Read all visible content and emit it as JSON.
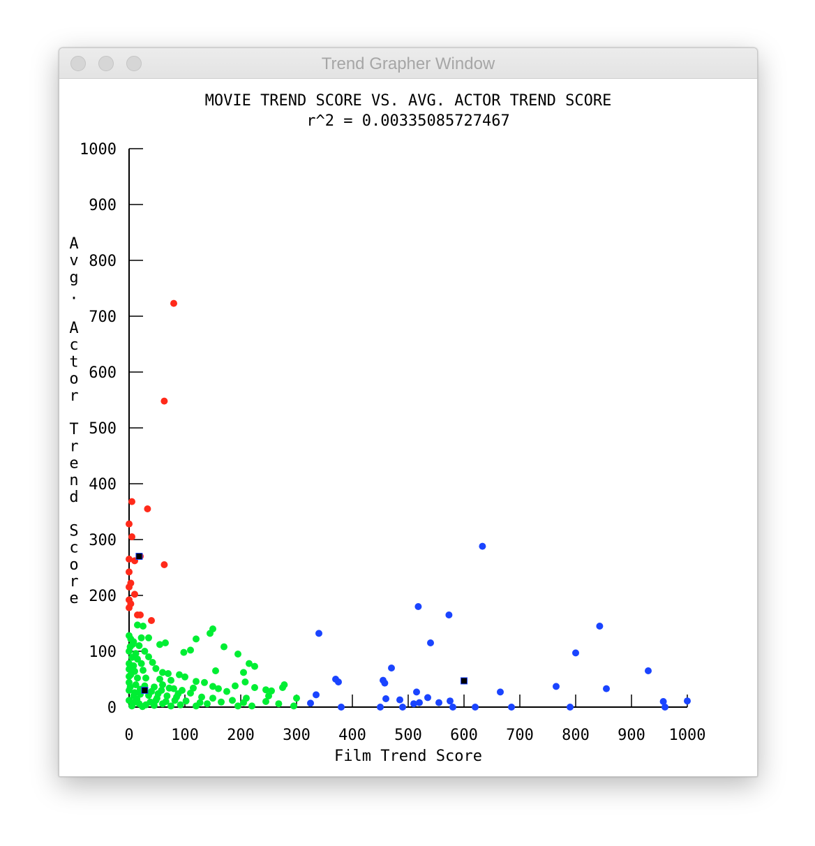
{
  "window": {
    "title": "Trend Grapher Window",
    "buttons": [
      "close",
      "minimize",
      "zoom"
    ]
  },
  "chart_data": {
    "type": "scatter",
    "title": "MOVIE TREND SCORE VS. AVG. ACTOR TREND SCORE",
    "subtitle": "r^2 = 0.00335085727467",
    "xlabel": "Film Trend Score",
    "ylabel": "Avg. Actor Trend Score",
    "xlim": [
      0,
      1000
    ],
    "ylim": [
      0,
      1000
    ],
    "x_ticks": [
      "0",
      "100",
      "200",
      "300",
      "400",
      "500",
      "600",
      "700",
      "800",
      "900",
      "1000"
    ],
    "y_ticks": [
      "0",
      "100",
      "200",
      "300",
      "400",
      "500",
      "600",
      "700",
      "800",
      "900",
      "1000"
    ],
    "grid": false,
    "legend": "none",
    "colors": {
      "red_series": "#ff2a1a",
      "green_series": "#00ee33",
      "blue_series": "#1a44ff",
      "centroid": "#000000"
    },
    "series": [
      {
        "color": "#ff2a1a",
        "points": [
          [
            80,
            723
          ],
          [
            63,
            548
          ],
          [
            5,
            368
          ],
          [
            33,
            355
          ],
          [
            0,
            328
          ],
          [
            5,
            305
          ],
          [
            20,
            270
          ],
          [
            0,
            265
          ],
          [
            10,
            262
          ],
          [
            63,
            255
          ],
          [
            0,
            242
          ],
          [
            3,
            222
          ],
          [
            0,
            215
          ],
          [
            10,
            202
          ],
          [
            0,
            192
          ],
          [
            3,
            185
          ],
          [
            0,
            178
          ],
          [
            15,
            165
          ],
          [
            20,
            165
          ],
          [
            40,
            155
          ]
        ]
      },
      {
        "color": "#00ee33",
        "points": [
          [
            150,
            140
          ],
          [
            145,
            132
          ],
          [
            15,
            147
          ],
          [
            25,
            145
          ],
          [
            120,
            122
          ],
          [
            35,
            124
          ],
          [
            65,
            115
          ],
          [
            55,
            112
          ],
          [
            170,
            108
          ],
          [
            195,
            95
          ],
          [
            215,
            78
          ],
          [
            225,
            73
          ],
          [
            205,
            62
          ],
          [
            155,
            65
          ],
          [
            98,
            98
          ],
          [
            110,
            102
          ],
          [
            0,
            128
          ],
          [
            3,
            122
          ],
          [
            8,
            117
          ],
          [
            18,
            110
          ],
          [
            0,
            100
          ],
          [
            12,
            96
          ],
          [
            28,
            100
          ],
          [
            5,
            89
          ],
          [
            15,
            86
          ],
          [
            35,
            90
          ],
          [
            0,
            78
          ],
          [
            8,
            74
          ],
          [
            22,
            78
          ],
          [
            42,
            80
          ],
          [
            0,
            68
          ],
          [
            10,
            64
          ],
          [
            25,
            66
          ],
          [
            48,
            69
          ],
          [
            60,
            62
          ],
          [
            70,
            60
          ],
          [
            90,
            58
          ],
          [
            0,
            55
          ],
          [
            15,
            52
          ],
          [
            30,
            52
          ],
          [
            55,
            50
          ],
          [
            75,
            48
          ],
          [
            100,
            54
          ],
          [
            120,
            46
          ],
          [
            135,
            44
          ],
          [
            208,
            45
          ],
          [
            225,
            35
          ],
          [
            245,
            31
          ],
          [
            255,
            29
          ],
          [
            275,
            35
          ],
          [
            278,
            40
          ],
          [
            300,
            16
          ],
          [
            0,
            44
          ],
          [
            12,
            40
          ],
          [
            28,
            38
          ],
          [
            45,
            36
          ],
          [
            60,
            40
          ],
          [
            80,
            33
          ],
          [
            95,
            30
          ],
          [
            115,
            34
          ],
          [
            150,
            37
          ],
          [
            160,
            33
          ],
          [
            175,
            28
          ],
          [
            190,
            38
          ],
          [
            210,
            16
          ],
          [
            250,
            20
          ],
          [
            268,
            6
          ],
          [
            0,
            30
          ],
          [
            10,
            26
          ],
          [
            20,
            23
          ],
          [
            35,
            21
          ],
          [
            52,
            24
          ],
          [
            68,
            20
          ],
          [
            85,
            18
          ],
          [
            110,
            25
          ],
          [
            130,
            18
          ],
          [
            150,
            16
          ],
          [
            185,
            12
          ],
          [
            205,
            8
          ],
          [
            245,
            10
          ],
          [
            295,
            2
          ],
          [
            0,
            12
          ],
          [
            8,
            8
          ],
          [
            18,
            6
          ],
          [
            30,
            4
          ],
          [
            45,
            3
          ],
          [
            60,
            6
          ],
          [
            75,
            2
          ],
          [
            92,
            4
          ],
          [
            120,
            2
          ],
          [
            140,
            6
          ],
          [
            165,
            9
          ],
          [
            195,
            2
          ],
          [
            220,
            2
          ],
          [
            5,
            2
          ],
          [
            24,
            1
          ],
          [
            38,
            9
          ],
          [
            48,
            12
          ],
          [
            66,
            10
          ],
          [
            82,
            12
          ],
          [
            102,
            11
          ],
          [
            127,
            8
          ],
          [
            3,
            58
          ],
          [
            2,
            36
          ],
          [
            8,
            20
          ],
          [
            14,
            14
          ],
          [
            20,
            32
          ],
          [
            40,
            28
          ],
          [
            50,
            16
          ],
          [
            58,
            30
          ],
          [
            72,
            34
          ],
          [
            88,
            24
          ],
          [
            2,
            108
          ],
          [
            6,
            112
          ],
          [
            22,
            124
          ]
        ]
      },
      {
        "color": "#1a44ff",
        "points": [
          [
            633,
            288
          ],
          [
            518,
            180
          ],
          [
            573,
            165
          ],
          [
            843,
            145
          ],
          [
            340,
            132
          ],
          [
            540,
            115
          ],
          [
            800,
            97
          ],
          [
            930,
            65
          ],
          [
            470,
            70
          ],
          [
            370,
            50
          ],
          [
            375,
            45
          ],
          [
            455,
            48
          ],
          [
            458,
            43
          ],
          [
            600,
            47
          ],
          [
            765,
            37
          ],
          [
            855,
            33
          ],
          [
            665,
            27
          ],
          [
            515,
            27
          ],
          [
            335,
            22
          ],
          [
            535,
            17
          ],
          [
            460,
            15
          ],
          [
            485,
            13
          ],
          [
            575,
            11
          ],
          [
            957,
            10
          ],
          [
            1000,
            11
          ],
          [
            555,
            8
          ],
          [
            325,
            7
          ],
          [
            510,
            6
          ],
          [
            520,
            8
          ],
          [
            380,
            0
          ],
          [
            450,
            0
          ],
          [
            490,
            0
          ],
          [
            580,
            0
          ],
          [
            620,
            0
          ],
          [
            685,
            0
          ],
          [
            790,
            0
          ],
          [
            960,
            0
          ]
        ]
      }
    ],
    "centroids": [
      [
        18,
        270
      ],
      [
        28,
        30
      ],
      [
        600,
        47
      ]
    ]
  }
}
